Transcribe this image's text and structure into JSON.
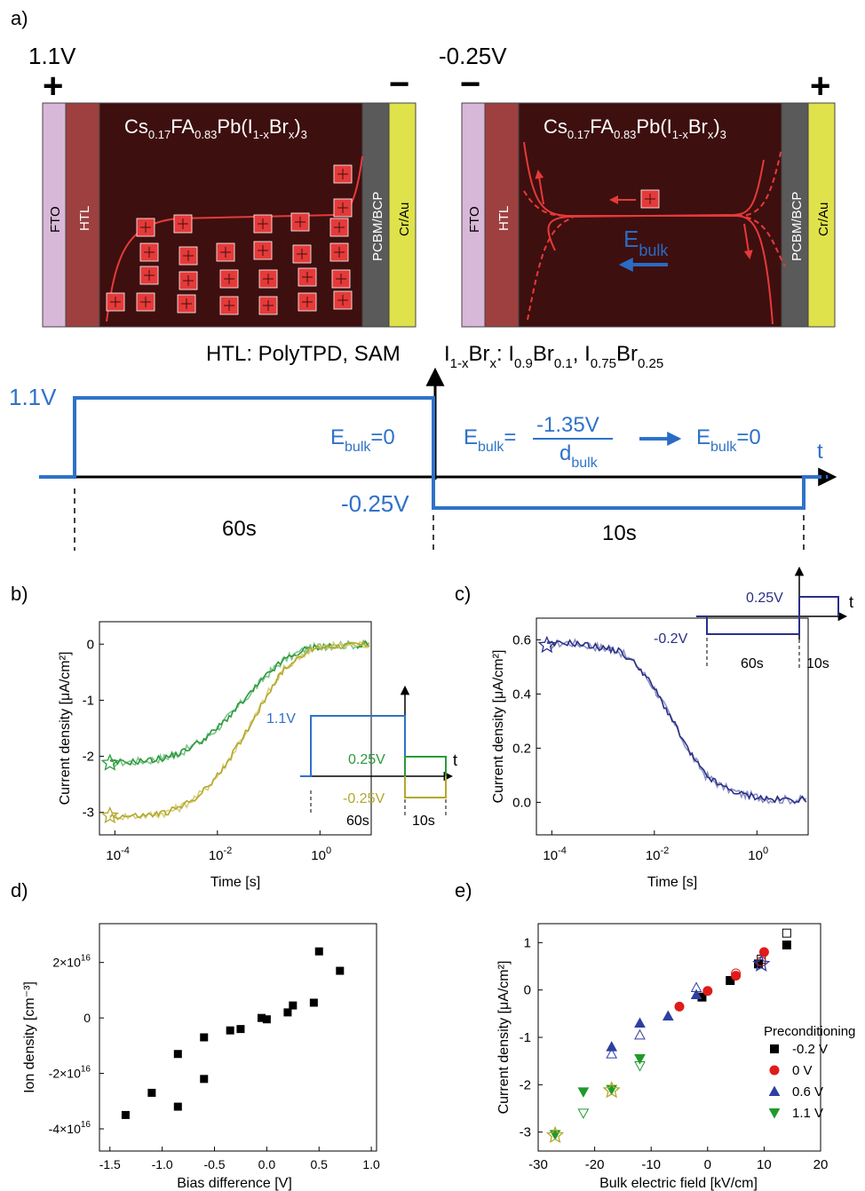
{
  "panel_labels": {
    "a": "a)",
    "b": "b)",
    "c": "c)",
    "d": "d)",
    "e": "e)"
  },
  "colors": {
    "fto": "#d8b8d8",
    "htl": "#9e4040",
    "perovskite": "#3e0f0f",
    "pcbm": "#5a5a5a",
    "crau": "#dfe24a",
    "ion": "#e53a3a",
    "field": "#2a6bc4",
    "blue_line": "#2f72c9",
    "green": "#2a9a3c",
    "olive": "#b3a82c",
    "navy": "#2a2f86",
    "navy_light": "#8c91c4",
    "red_marker": "#e01b1b",
    "green_marker": "#1f9a2a"
  },
  "panel_a": {
    "left": {
      "voltage": "1.1V",
      "left_sign": "+",
      "right_sign": "−",
      "perovskite_formula": {
        "base": "Cs",
        "s1": "0.17",
        "fa": "FA",
        "s2": "0.83",
        "pb": "Pb(I",
        "s3": "1-x",
        "br": "Br",
        "s4": "x",
        "close": ")",
        "s5": "3"
      },
      "labels": {
        "fto": "FTO",
        "htl": "HTL",
        "pcbm": "PCBM/BCP",
        "crau": "Cr/Au"
      }
    },
    "right": {
      "voltage": "-0.25V",
      "left_sign": "−",
      "right_sign": "+",
      "perovskite_formula": {
        "base": "Cs",
        "s1": "0.17",
        "fa": "FA",
        "s2": "0.83",
        "pb": "Pb(I",
        "s3": "1-x",
        "br": "Br",
        "s4": "x",
        "close": ")",
        "s5": "3"
      },
      "labels": {
        "fto": "FTO",
        "htl": "HTL",
        "pcbm": "PCBM/BCP",
        "crau": "Cr/Au"
      },
      "field_label": {
        "main": "E",
        "sub": "bulk"
      }
    },
    "htl_note": "HTL: PolyTPD, SAM",
    "halide_note": {
      "i": "I",
      "s1": "1-x",
      "br": "Br",
      "s2": "x",
      "rest1": ": I",
      "s3": "0.9",
      "br2": "Br",
      "s4": "0.1",
      "rest2": ", I",
      "s5": "0.75",
      "br3": "Br",
      "s6": "0.25"
    },
    "timeline": {
      "v_high": "1.1V",
      "v_low": "-0.25V",
      "e_zero_left": {
        "main": "E",
        "sub": "bulk",
        "tail": "=0"
      },
      "e_eq": {
        "main": "E",
        "sub": "bulk",
        "tail": "="
      },
      "fraction_num": "-1.35V",
      "fraction_den": {
        "main": "d",
        "sub": "bulk"
      },
      "e_zero_right": {
        "main": "E",
        "sub": "bulk",
        "tail": "=0"
      },
      "t_label": "t",
      "dur1": "60s",
      "dur2": "10s"
    }
  },
  "chart_data": [
    {
      "panel": "b",
      "type": "line",
      "xlabel": "Time [s]",
      "ylabel": "Current density [μA/cm²]",
      "x_scale": "log",
      "xlim": [
        5e-05,
        10
      ],
      "ylim": [
        -3.4,
        0.4
      ],
      "x_ticks": [
        {
          "v": 0.0001,
          "base": "10",
          "exp": "-4"
        },
        {
          "v": 0.01,
          "base": "10",
          "exp": "-2"
        },
        {
          "v": 1,
          "base": "10",
          "exp": "0"
        }
      ],
      "y_ticks": [
        0,
        -1,
        -2,
        -3
      ],
      "y_tick_labels": [
        "0",
        "-1",
        "-2",
        "-3"
      ],
      "series": [
        {
          "color": "green",
          "x": [
            8e-05,
            0.0002,
            0.0005,
            0.001,
            0.002,
            0.005,
            0.01,
            0.02,
            0.05,
            0.1,
            0.2,
            0.5,
            1,
            2,
            5,
            10
          ],
          "y": [
            -2.12,
            -2.1,
            -2.07,
            -2.02,
            -1.93,
            -1.72,
            -1.5,
            -1.22,
            -0.82,
            -0.52,
            -0.28,
            -0.1,
            -0.04,
            -0.02,
            -0.01,
            0.0
          ]
        },
        {
          "color": "olive",
          "x": [
            8e-05,
            0.0002,
            0.0005,
            0.001,
            0.002,
            0.005,
            0.01,
            0.02,
            0.05,
            0.1,
            0.2,
            0.5,
            1,
            2,
            5,
            10
          ],
          "y": [
            -3.06,
            -3.07,
            -3.05,
            -3.0,
            -2.9,
            -2.65,
            -2.35,
            -1.95,
            -1.35,
            -0.85,
            -0.45,
            -0.15,
            -0.06,
            -0.03,
            -0.01,
            0.0
          ]
        }
      ],
      "inset": {
        "v_high": "1.1V",
        "v_mid": "0.25V",
        "v_low": "-0.25V",
        "t": "t",
        "dur1": "60s",
        "dur2": "10s"
      }
    },
    {
      "panel": "c",
      "type": "line",
      "xlabel": "Time [s]",
      "ylabel": "Current density [μA/cm²]",
      "x_scale": "log",
      "xlim": [
        5e-05,
        10
      ],
      "ylim": [
        -0.12,
        0.68
      ],
      "x_ticks": [
        {
          "v": 0.0001,
          "base": "10",
          "exp": "-4"
        },
        {
          "v": 0.01,
          "base": "10",
          "exp": "-2"
        },
        {
          "v": 1,
          "base": "10",
          "exp": "0"
        }
      ],
      "y_ticks": [
        0.6,
        0.4,
        0.2,
        0.0
      ],
      "y_tick_labels": [
        "0.6",
        "0.4",
        "0.2",
        "0.0"
      ],
      "series": [
        {
          "color": "navy",
          "x": [
            8e-05,
            0.0002,
            0.0005,
            0.001,
            0.002,
            0.005,
            0.01,
            0.02,
            0.05,
            0.1,
            0.2,
            0.5,
            1,
            2,
            5,
            10
          ],
          "y": [
            0.58,
            0.59,
            0.58,
            0.57,
            0.56,
            0.5,
            0.42,
            0.32,
            0.18,
            0.1,
            0.06,
            0.03,
            0.02,
            0.01,
            0.01,
            0.01
          ]
        }
      ],
      "inset": {
        "v_low": "-0.2V",
        "v_high": "0.25V",
        "t": "t",
        "dur1": "60s",
        "dur2": "10s"
      }
    },
    {
      "panel": "d",
      "type": "scatter",
      "xlabel": "Bias difference [V]",
      "ylabel": "Ion density [cm⁻³]",
      "xlim": [
        -1.6,
        1.05
      ],
      "ylim": [
        -4.8e+16,
        3.4e+16
      ],
      "x_ticks": [
        -1.5,
        -1.0,
        -0.5,
        0.0,
        0.5,
        1.0
      ],
      "x_tick_labels": [
        "-1.5",
        "-1.0",
        "-0.5",
        "0.0",
        "0.5",
        "1.0"
      ],
      "y_ticks": [
        {
          "v": 2e+16,
          "label": "2×10",
          "exp": "16"
        },
        {
          "v": 0,
          "label": "0",
          "exp": ""
        },
        {
          "v": -2e+16,
          "label": "-2×10",
          "exp": "16"
        },
        {
          "v": -4e+16,
          "label": "-4×10",
          "exp": "16"
        }
      ],
      "points": [
        [
          -1.35,
          -3.5e+16
        ],
        [
          -1.1,
          -2.7e+16
        ],
        [
          -0.85,
          -3.2e+16
        ],
        [
          -0.85,
          -1.3e+16
        ],
        [
          -0.6,
          -7000000000000000.0
        ],
        [
          -0.6,
          -2.2e+16
        ],
        [
          -0.35,
          -4500000000000000.0
        ],
        [
          -0.25,
          -4000000000000000.0
        ],
        [
          -0.05,
          0.0
        ],
        [
          0.0,
          -500000000000000.0
        ],
        [
          0.2,
          2000000000000000.0
        ],
        [
          0.25,
          4500000000000000.0
        ],
        [
          0.45,
          5500000000000000.0
        ],
        [
          0.5,
          2.4e+16
        ],
        [
          0.7,
          1.7e+16
        ]
      ]
    },
    {
      "panel": "e",
      "type": "scatter",
      "xlabel": "Bulk electric field [kV/cm]",
      "ylabel": "Current density [μA/cm²]",
      "xlim": [
        -30,
        20
      ],
      "ylim": [
        -3.4,
        1.4
      ],
      "x_ticks": [
        -30,
        -20,
        -10,
        0,
        10,
        20
      ],
      "x_tick_labels": [
        "-30",
        "-20",
        "-10",
        "0",
        "10",
        "20"
      ],
      "y_ticks": [
        1,
        0,
        -1,
        -2,
        -3
      ],
      "y_tick_labels": [
        "1",
        "0",
        "-1",
        "-2",
        "-3"
      ],
      "legend_title": "Preconditioning",
      "legend_position": "right",
      "series": [
        {
          "name": "-0.2 V",
          "marker": "square",
          "color": "#000000",
          "filled": [
            [
              -1,
              -0.15
            ],
            [
              4,
              0.2
            ],
            [
              9,
              0.55
            ],
            [
              14,
              0.95
            ]
          ],
          "open": [
            [
              9.5,
              0.65
            ],
            [
              14,
              1.2
            ]
          ]
        },
        {
          "name": "0 V",
          "marker": "circle",
          "color": "#e01b1b",
          "filled": [
            [
              -5,
              -0.35
            ],
            [
              0,
              -0.02
            ],
            [
              5,
              0.3
            ],
            [
              10,
              0.8
            ]
          ],
          "open": [
            [
              5,
              0.35
            ],
            [
              9.5,
              0.6
            ]
          ]
        },
        {
          "name": "0.6 V",
          "marker": "triangle-up",
          "color": "#2f3fa0",
          "filled": [
            [
              -7,
              -0.55
            ],
            [
              -12,
              -0.7
            ],
            [
              -17,
              -1.2
            ],
            [
              -2,
              -0.1
            ]
          ],
          "open": [
            [
              -2,
              0.05
            ],
            [
              -12,
              -0.95
            ],
            [
              -17,
              -1.35
            ]
          ]
        },
        {
          "name": "1.1 V",
          "marker": "triangle-down",
          "color": "#1f9a2a",
          "filled": [
            [
              -12,
              -1.45
            ],
            [
              -17,
              -2.1
            ],
            [
              -22,
              -2.15
            ],
            [
              -27,
              -3.05
            ]
          ],
          "open": [
            [
              -12,
              -1.6
            ],
            [
              -22,
              -2.6
            ]
          ]
        }
      ],
      "stars": [
        [
          -27,
          -3.07
        ],
        [
          -17,
          -2.12
        ],
        [
          9.5,
          0.55
        ]
      ]
    }
  ]
}
